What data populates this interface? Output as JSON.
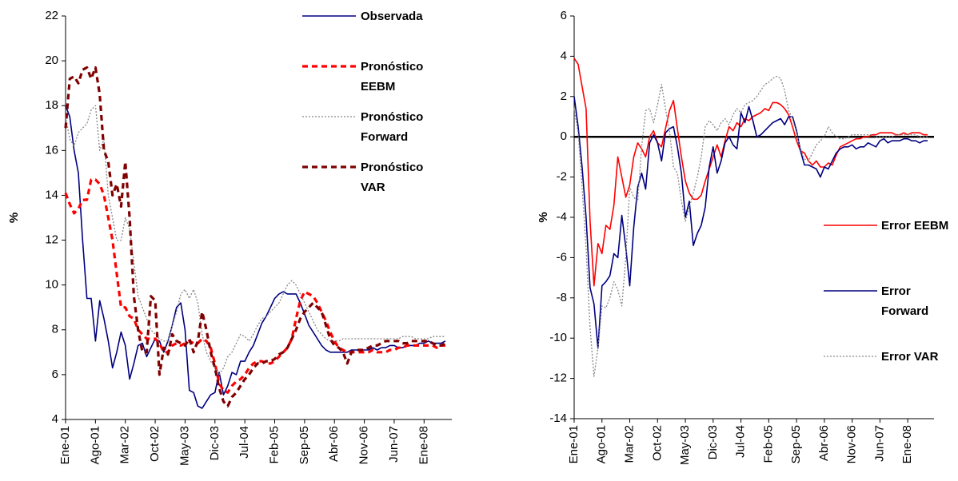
{
  "chart_data": [
    {
      "type": "line",
      "y_label": "%",
      "ylim": [
        4,
        22
      ],
      "yticks": [
        4,
        6,
        8,
        10,
        12,
        14,
        16,
        18,
        20,
        22
      ],
      "legend": "upper right",
      "categories": [
        "Ene-01",
        null,
        null,
        null,
        null,
        null,
        null,
        "Ago-01",
        null,
        null,
        null,
        null,
        null,
        null,
        "Mar-02",
        null,
        null,
        null,
        null,
        null,
        null,
        "Oct-02",
        null,
        null,
        null,
        null,
        null,
        null,
        "May-03",
        null,
        null,
        null,
        null,
        null,
        null,
        "Dic-03",
        null,
        null,
        null,
        null,
        null,
        null,
        "Jul-04",
        null,
        null,
        null,
        null,
        null,
        null,
        "Feb-05",
        null,
        null,
        null,
        null,
        null,
        null,
        "Sep-05",
        null,
        null,
        null,
        null,
        null,
        null,
        "Abr-06",
        null,
        null,
        null,
        null,
        null,
        null,
        "Nov-06",
        null,
        null,
        null,
        null,
        null,
        null,
        "Jun-07",
        null,
        null,
        null,
        null,
        null,
        null,
        "Ene-08",
        null,
        null,
        null,
        null,
        null
      ],
      "series": [
        {
          "name": "Observada",
          "color": "#000080",
          "style": "solid",
          "values": [
            18,
            17.5,
            16,
            15,
            12,
            9.4,
            9.4,
            7.5,
            9.3,
            8.5,
            7.5,
            6.3,
            7,
            7.9,
            7.3,
            5.8,
            6.5,
            7.3,
            7.4,
            6.8,
            7.2,
            7.6,
            7.5,
            7,
            7.5,
            8.2,
            9,
            9.2,
            8,
            5.3,
            5.2,
            4.6,
            4.5,
            4.8,
            5.1,
            5.2,
            6.1,
            5.1,
            5.5,
            6.1,
            6,
            6.6,
            6.6,
            7,
            7.3,
            7.8,
            8.3,
            8.6,
            9,
            9.4,
            9.6,
            9.7,
            9.6,
            9.6,
            9.6,
            9.2,
            8.7,
            8.2,
            7.9,
            7.6,
            7.3,
            7.1,
            7,
            7,
            7,
            7,
            7,
            7.1,
            7.1,
            7.1,
            7.1,
            7.1,
            7.2,
            7.1,
            7.2,
            7.2,
            7.3,
            7.3,
            7.2,
            7.2,
            7.3,
            7.3,
            7.3,
            7.4,
            7.4,
            7.5,
            7.4,
            7.4,
            7.4,
            7.5
          ]
        },
        {
          "name": "Pronóstico EEBM",
          "color": "#ff0000",
          "style": "dashed",
          "values": [
            14.1,
            13.6,
            13.2,
            13.4,
            13.8,
            13.8,
            14.7,
            14.7,
            14.5,
            14,
            13,
            12,
            10.5,
            9,
            9,
            8.6,
            8.5,
            8,
            7.8,
            7.6,
            7.6,
            7.6,
            7.4,
            7,
            7,
            7.3,
            7.4,
            7.3,
            7.4,
            7.5,
            7.4,
            7.4,
            7.6,
            7.5,
            7.2,
            6.5,
            5.6,
            5.3,
            5.2,
            5.5,
            5.7,
            5.8,
            6,
            6.3,
            6.5,
            6.6,
            6.6,
            6.5,
            6.5,
            6.6,
            6.8,
            7,
            7.2,
            7.6,
            8.5,
            9.3,
            9.7,
            9.6,
            9.5,
            9.2,
            8.8,
            8.4,
            7.9,
            7.5,
            7.2,
            7.1,
            7,
            7,
            7,
            7,
            7,
            7,
            7.1,
            7,
            7,
            7,
            7.1,
            7.1,
            7.2,
            7.2,
            7.3,
            7.3,
            7.3,
            7.3,
            7.3,
            7.3,
            7.3,
            7.2,
            7.3,
            7.3
          ]
        },
        {
          "name": "Pronóstico Forward",
          "color": "#888888",
          "style": "dotted",
          "values": [
            17.5,
            16.5,
            16.2,
            16.8,
            17,
            17.2,
            17.8,
            18,
            16,
            16.5,
            14,
            13,
            12,
            12,
            13,
            12.5,
            11,
            9.5,
            9,
            8.5,
            8,
            7.8,
            7.6,
            7.5,
            7.5,
            8.2,
            8.8,
            9.6,
            9.8,
            9.4,
            9.8,
            9.2,
            7.8,
            7,
            6.6,
            6.3,
            6,
            6.3,
            6.8,
            7,
            7.4,
            7.8,
            7.7,
            7.5,
            7.8,
            8.2,
            8.5,
            8.6,
            8.8,
            9,
            9.2,
            9.6,
            10,
            10.2,
            10,
            9.6,
            9.2,
            8.8,
            8.4,
            8,
            7.8,
            7.6,
            7.5,
            7.5,
            7.5,
            7.6,
            7.6,
            7.6,
            7.6,
            7.6,
            7.6,
            7.6,
            7.6,
            7.6,
            7.6,
            7.6,
            7.6,
            7.6,
            7.6,
            7.7,
            7.7,
            7.7,
            7.6,
            7.6,
            7.6,
            7.6,
            7.7,
            7.7,
            7.7,
            7.7
          ]
        },
        {
          "name": "Pronóstico VAR",
          "color": "#800000",
          "style": "dashed",
          "values": [
            17,
            19.2,
            19.3,
            19,
            19.6,
            19.7,
            19.2,
            19.7,
            18.5,
            16,
            15.5,
            14,
            14.5,
            13.5,
            15.5,
            13,
            9.5,
            8,
            7,
            7,
            9.5,
            9.3,
            6,
            7.2,
            6.9,
            7.8,
            7.5,
            7.4,
            7.3,
            7.6,
            7,
            7.5,
            8.8,
            8,
            7,
            6.3,
            5.4,
            4.8,
            4.6,
            5,
            5.2,
            5.5,
            5.8,
            6,
            6.3,
            6.5,
            6.5,
            6.6,
            6.6,
            6.7,
            6.9,
            7,
            7.2,
            7.6,
            8,
            8.5,
            8.8,
            9,
            9.2,
            9,
            8.8,
            8.2,
            7.6,
            7.3,
            7.2,
            7,
            6.5,
            7,
            7.1,
            7.1,
            7.1,
            7.2,
            7.3,
            7.3,
            7.4,
            7.5,
            7.5,
            7.5,
            7.5,
            7.4,
            7.4,
            7.5,
            7.5,
            7.5,
            7.5,
            7.5,
            7.4,
            7.3,
            7.3,
            7.4
          ]
        }
      ]
    },
    {
      "type": "line",
      "y_label": "%",
      "ylim": [
        -14,
        6
      ],
      "yticks": [
        -14,
        -12,
        -10,
        -8,
        -6,
        -4,
        -2,
        0,
        2,
        4,
        6
      ],
      "zero_line": true,
      "legend": "right",
      "categories": [
        "Ene-01",
        null,
        null,
        null,
        null,
        null,
        null,
        "Ago-01",
        null,
        null,
        null,
        null,
        null,
        null,
        "Mar-02",
        null,
        null,
        null,
        null,
        null,
        null,
        "Oct-02",
        null,
        null,
        null,
        null,
        null,
        null,
        "May-03",
        null,
        null,
        null,
        null,
        null,
        null,
        "Dic-03",
        null,
        null,
        null,
        null,
        null,
        null,
        "Jul-04",
        null,
        null,
        null,
        null,
        null,
        null,
        "Feb-05",
        null,
        null,
        null,
        null,
        null,
        null,
        "Sep-05",
        null,
        null,
        null,
        null,
        null,
        null,
        "Abr-06",
        null,
        null,
        null,
        null,
        null,
        null,
        "Nov-06",
        null,
        null,
        null,
        null,
        null,
        null,
        "Jun-07",
        null,
        null,
        null,
        null,
        null,
        null,
        "Ene-08",
        null,
        null,
        null,
        null,
        null
      ],
      "series": [
        {
          "name": "Error EEBM",
          "color": "#ff0000",
          "style": "solid",
          "values": [
            3.9,
            3.6,
            2.5,
            1.4,
            -4.2,
            -7.4,
            -5.3,
            -5.8,
            -4.4,
            -4.6,
            -3.4,
            -1,
            -2,
            -3,
            -2.4,
            -1,
            -0.3,
            -0.6,
            -1,
            0,
            0.3,
            -0.3,
            -0.5,
            0.4,
            1.3,
            1.8,
            0.4,
            -1,
            -2.2,
            -2.8,
            -3.1,
            -3.1,
            -2.9,
            -2.2,
            -1.6,
            -1,
            -0.4,
            -1,
            -0.2,
            0.5,
            0.3,
            0.7,
            0.5,
            0.9,
            0.8,
            1,
            1.1,
            1.2,
            1.4,
            1.3,
            1.7,
            1.7,
            1.6,
            1.4,
            1.1,
            0.5,
            -0.2,
            -0.7,
            -0.8,
            -1.2,
            -1.4,
            -1.2,
            -1.5,
            -1.5,
            -1.3,
            -1.4,
            -0.9,
            -0.5,
            -0.4,
            -0.3,
            -0.2,
            -0.1,
            -0.1,
            0,
            0,
            0.1,
            0.1,
            0.2,
            0.2,
            0.2,
            0.2,
            0.1,
            0.1,
            0.2,
            0.1,
            0.2,
            0.2,
            0.2,
            0.1,
            0.1
          ]
        },
        {
          "name": "Error Forward",
          "color": "#000080",
          "style": "solid",
          "values": [
            2,
            0.5,
            -1.5,
            -4,
            -7.5,
            -8.3,
            -10.5,
            -7.4,
            -7.2,
            -6.9,
            -5.8,
            -6,
            -3.9,
            -5.5,
            -7.4,
            -4.5,
            -2.5,
            -1.8,
            -2.6,
            -0.3,
            0.1,
            -0.3,
            -1.2,
            0.2,
            0.4,
            0.5,
            -0.5,
            -1.8,
            -4,
            -3.2,
            -5.4,
            -4.8,
            -4.4,
            -3.5,
            -1.5,
            -0.5,
            -1.8,
            -1.2,
            -0.3,
            0,
            -0.4,
            -0.6,
            1.2,
            0.7,
            1.5,
            0.8,
            0,
            0.1,
            0.3,
            0.5,
            0.7,
            0.8,
            0.9,
            0.6,
            1,
            1,
            0.3,
            -0.7,
            -1.4,
            -1.4,
            -1.5,
            -1.6,
            -2,
            -1.5,
            -1.6,
            -1.2,
            -0.8,
            -0.6,
            -0.5,
            -0.5,
            -0.4,
            -0.6,
            -0.5,
            -0.5,
            -0.3,
            -0.4,
            -0.5,
            -0.2,
            -0.1,
            -0.3,
            -0.2,
            -0.2,
            -0.2,
            -0.1,
            -0.1,
            -0.2,
            -0.2,
            -0.3,
            -0.2,
            -0.2
          ]
        },
        {
          "name": "Error VAR",
          "color": "#888888",
          "style": "dotted",
          "values": [
            1.4,
            0.2,
            -2.5,
            -5.5,
            -9.5,
            -11.9,
            -10.5,
            -8.4,
            -8.5,
            -8,
            -7.2,
            -7.6,
            -8.4,
            -6,
            -2.5,
            -3,
            -3.2,
            -0.5,
            1.3,
            1.4,
            0.7,
            1.6,
            2.6,
            1.4,
            0.3,
            -1.5,
            -1.8,
            -3.2,
            -4.2,
            -3.5,
            -2.8,
            -2,
            -1,
            0.5,
            0.8,
            0.6,
            0.3,
            0.7,
            0.9,
            0.6,
            1.1,
            1.4,
            1.2,
            1.6,
            1.7,
            1.8,
            2,
            2.3,
            2.6,
            2.7,
            2.9,
            3,
            2.9,
            2.3,
            1.3,
            0.9,
            0.2,
            -0.6,
            -1.1,
            -1.2,
            -0.8,
            -0.4,
            -0.2,
            0,
            0.5,
            0.2,
            0,
            -0.1,
            -0.1,
            0,
            0.1,
            0.1,
            0.1,
            0.1,
            0.1,
            0.1,
            0,
            0,
            0,
            0,
            0,
            0.1,
            0.1,
            0.1,
            0.1,
            0.1,
            0.1,
            0,
            0,
            0
          ]
        }
      ]
    }
  ]
}
